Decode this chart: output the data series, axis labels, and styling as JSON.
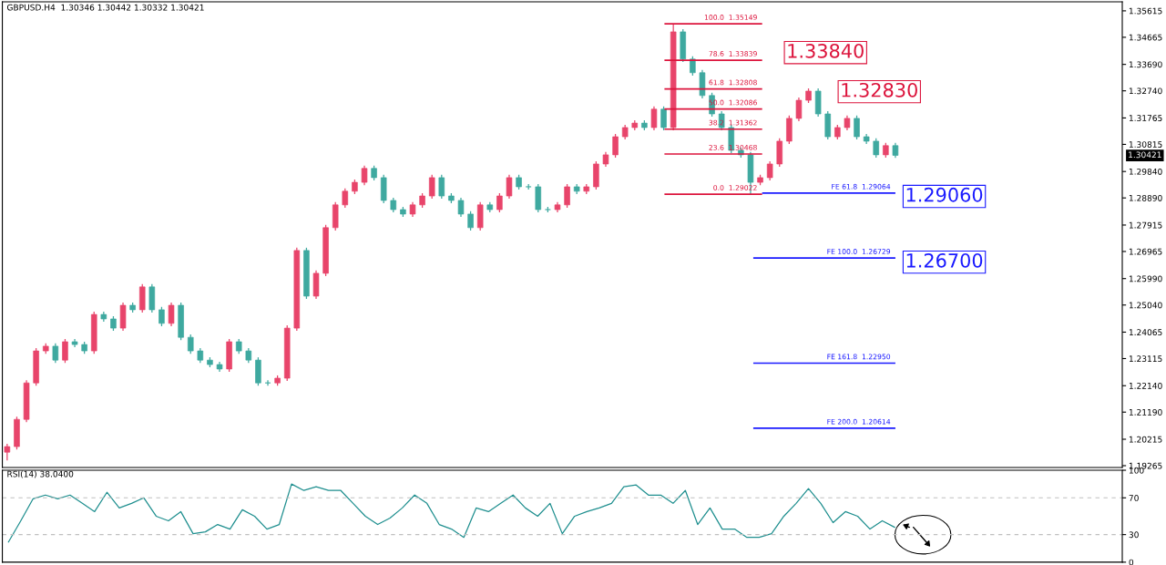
{
  "chart_data": [
    {
      "type": "candlestick",
      "title": "GBPUSD.H4  1.30346 1.30442 1.30332 1.30421",
      "categories": [
        null,
        null,
        null,
        null,
        null,
        null,
        null,
        null,
        null,
        null,
        null,
        null,
        null,
        null,
        null,
        null,
        null,
        null,
        null,
        null,
        null,
        null,
        null,
        null,
        null,
        null,
        null,
        null,
        null,
        null,
        null,
        null,
        null,
        null,
        null,
        null,
        null,
        null,
        null,
        null,
        null,
        null,
        null,
        null,
        null,
        null,
        null,
        null,
        null,
        null,
        null,
        null,
        null,
        null,
        null,
        null,
        null,
        null,
        null,
        null,
        null,
        null,
        null,
        null,
        null,
        null,
        null,
        null,
        null,
        null,
        null,
        null,
        null,
        null,
        null,
        null,
        null,
        null,
        null,
        null,
        null,
        null,
        null,
        null,
        null,
        null,
        null,
        null,
        null,
        null,
        null,
        null,
        null,
        null,
        null,
        null,
        null,
        null,
        null,
        null,
        null,
        null,
        null,
        null,
        null,
        null,
        null,
        null,
        null,
        null,
        null,
        null,
        null,
        null,
        null,
        null
      ],
      "ohlc": [
        [
          1.1975,
          1.2005,
          1.1945,
          1.1995
        ],
        [
          1.1995,
          1.2103,
          1.1985,
          1.2093
        ],
        [
          1.2093,
          1.2234,
          1.2083,
          1.2224
        ],
        [
          1.2224,
          1.2349,
          1.2214,
          1.2339
        ],
        [
          1.2339,
          1.2366,
          1.2329,
          1.2356
        ],
        [
          1.2356,
          1.2366,
          1.2296,
          1.2306
        ],
        [
          1.2306,
          1.2382,
          1.2296,
          1.2372
        ],
        [
          1.2372,
          1.2382,
          1.2352,
          1.2362
        ],
        [
          1.2362,
          1.2372,
          1.2329,
          1.2339
        ],
        [
          1.2339,
          1.248,
          1.2329,
          1.247
        ],
        [
          1.247,
          1.248,
          1.2444,
          1.2454
        ],
        [
          1.2454,
          1.2464,
          1.2411,
          1.2421
        ],
        [
          1.2421,
          1.2513,
          1.2411,
          1.2503
        ],
        [
          1.2503,
          1.2513,
          1.2477,
          1.2487
        ],
        [
          1.2487,
          1.2579,
          1.2477,
          1.2569
        ],
        [
          1.2569,
          1.2579,
          1.2477,
          1.2487
        ],
        [
          1.2487,
          1.2497,
          1.2428,
          1.2438
        ],
        [
          1.2438,
          1.2513,
          1.2428,
          1.2503
        ],
        [
          1.2503,
          1.2513,
          1.2378,
          1.2388
        ],
        [
          1.2388,
          1.2398,
          1.2329,
          1.2339
        ],
        [
          1.2339,
          1.2349,
          1.2296,
          1.2306
        ],
        [
          1.2306,
          1.2316,
          1.228,
          1.229
        ],
        [
          1.229,
          1.23,
          1.2264,
          1.2274
        ],
        [
          1.2274,
          1.2382,
          1.2264,
          1.2372
        ],
        [
          1.2372,
          1.2382,
          1.2329,
          1.2339
        ],
        [
          1.2339,
          1.2349,
          1.2296,
          1.2306
        ],
        [
          1.2306,
          1.2316,
          1.2214,
          1.2224
        ],
        [
          1.2224,
          1.2234,
          1.2214,
          1.2224
        ],
        [
          1.2224,
          1.2251,
          1.2214,
          1.2241
        ],
        [
          1.2241,
          1.2431,
          1.2231,
          1.2421
        ],
        [
          1.2421,
          1.271,
          1.2411,
          1.27
        ],
        [
          1.27,
          1.271,
          1.2526,
          1.2536
        ],
        [
          1.2536,
          1.2628,
          1.2526,
          1.2618
        ],
        [
          1.2618,
          1.2792,
          1.2608,
          1.2782
        ],
        [
          1.2782,
          1.2874,
          1.2772,
          1.2864
        ],
        [
          1.2864,
          1.2923,
          1.2854,
          1.2913
        ],
        [
          1.2913,
          1.2955,
          1.2903,
          1.2945
        ],
        [
          1.2945,
          1.3005,
          1.2935,
          1.2995
        ],
        [
          1.2995,
          1.3005,
          1.2952,
          1.2962
        ],
        [
          1.2962,
          1.2972,
          1.287,
          1.288
        ],
        [
          1.288,
          1.289,
          1.2837,
          1.2847
        ],
        [
          1.2847,
          1.2857,
          1.2821,
          1.2831
        ],
        [
          1.2831,
          1.2874,
          1.2821,
          1.2864
        ],
        [
          1.2864,
          1.2906,
          1.2854,
          1.2896
        ],
        [
          1.2896,
          1.2972,
          1.2886,
          1.2962
        ],
        [
          1.2962,
          1.2972,
          1.2886,
          1.2896
        ],
        [
          1.2896,
          1.2906,
          1.287,
          1.288
        ],
        [
          1.288,
          1.289,
          1.2821,
          1.2831
        ],
        [
          1.2831,
          1.2841,
          1.2772,
          1.2782
        ],
        [
          1.2782,
          1.2874,
          1.2772,
          1.2864
        ],
        [
          1.2864,
          1.2874,
          1.2837,
          1.2847
        ],
        [
          1.2847,
          1.2906,
          1.2837,
          1.2896
        ],
        [
          1.2896,
          1.2972,
          1.2886,
          1.2962
        ],
        [
          1.2962,
          1.2972,
          1.2919,
          1.2929
        ],
        [
          1.2929,
          1.2939,
          1.2919,
          1.2929
        ],
        [
          1.2929,
          1.2939,
          1.2837,
          1.2847
        ],
        [
          1.2847,
          1.2857,
          1.2837,
          1.2847
        ],
        [
          1.2847,
          1.2874,
          1.2837,
          1.2864
        ],
        [
          1.2864,
          1.2939,
          1.2854,
          1.2929
        ],
        [
          1.2929,
          1.2939,
          1.2903,
          1.2913
        ],
        [
          1.2913,
          1.2939,
          1.2903,
          1.2929
        ],
        [
          1.2929,
          1.3021,
          1.2919,
          1.3011
        ],
        [
          1.3011,
          1.3054,
          1.3001,
          1.3044
        ],
        [
          1.3044,
          1.3119,
          1.3034,
          1.3109
        ],
        [
          1.3109,
          1.3152,
          1.3099,
          1.3142
        ],
        [
          1.3142,
          1.3168,
          1.3132,
          1.3158
        ],
        [
          1.3158,
          1.3168,
          1.3132,
          1.3142
        ],
        [
          1.3142,
          1.3218,
          1.3132,
          1.3208
        ],
        [
          1.3208,
          1.3218,
          1.3132,
          1.3142
        ],
        [
          1.3142,
          1.3515,
          1.3132,
          1.3486
        ],
        [
          1.3486,
          1.3496,
          1.3378,
          1.3388
        ],
        [
          1.3388,
          1.3398,
          1.3329,
          1.3339
        ],
        [
          1.3339,
          1.3349,
          1.3247,
          1.3257
        ],
        [
          1.3257,
          1.3267,
          1.3181,
          1.3191
        ],
        [
          1.3191,
          1.3201,
          1.3132,
          1.3142
        ],
        [
          1.3142,
          1.3152,
          1.305,
          1.306
        ],
        [
          1.306,
          1.307,
          1.3034,
          1.3044
        ],
        [
          1.3044,
          1.3054,
          1.2902,
          1.2945
        ],
        [
          1.2945,
          1.2972,
          1.2935,
          1.2962
        ],
        [
          1.2962,
          1.3021,
          1.2952,
          1.3011
        ],
        [
          1.3011,
          1.3103,
          1.3001,
          1.3093
        ],
        [
          1.3093,
          1.3185,
          1.3083,
          1.3175
        ],
        [
          1.3175,
          1.325,
          1.3165,
          1.324
        ],
        [
          1.324,
          1.3283,
          1.323,
          1.3273
        ],
        [
          1.3273,
          1.3283,
          1.3181,
          1.3191
        ],
        [
          1.3191,
          1.3201,
          1.3099,
          1.3109
        ],
        [
          1.3109,
          1.3152,
          1.3099,
          1.3142
        ],
        [
          1.3142,
          1.3185,
          1.3132,
          1.3175
        ],
        [
          1.3175,
          1.3185,
          1.3099,
          1.3109
        ],
        [
          1.3109,
          1.3119,
          1.3083,
          1.3093
        ],
        [
          1.3093,
          1.3103,
          1.3034,
          1.3044
        ],
        [
          1.3044,
          1.3087,
          1.3034,
          1.3077
        ],
        [
          1.3077,
          1.3087,
          1.3033,
          1.3042
        ],
        null,
        null,
        null,
        null,
        null,
        null,
        null,
        null,
        null,
        null,
        null,
        null,
        null,
        null,
        null,
        null,
        null,
        null,
        null,
        null,
        null,
        null,
        null
      ],
      "colors": [
        "#e8456b",
        "#e8456b",
        "#e8456b",
        "#e8456b",
        "#e8456b",
        "#3fa9a0",
        "#e8456b",
        "#3fa9a0",
        "#3fa9a0",
        "#e8456b",
        "#3fa9a0",
        "#3fa9a0",
        "#e8456b",
        "#3fa9a0",
        "#e8456b",
        "#3fa9a0",
        "#3fa9a0",
        "#e8456b",
        "#3fa9a0",
        "#3fa9a0",
        "#3fa9a0",
        "#3fa9a0",
        "#3fa9a0",
        "#e8456b",
        "#3fa9a0",
        "#3fa9a0",
        "#3fa9a0",
        "#3fa9a0",
        "#e8456b",
        "#e8456b",
        "#e8456b",
        "#3fa9a0",
        "#e8456b",
        "#e8456b",
        "#e8456b",
        "#e8456b",
        "#e8456b",
        "#e8456b",
        "#3fa9a0",
        "#3fa9a0",
        "#3fa9a0",
        "#3fa9a0",
        "#e8456b",
        "#e8456b",
        "#e8456b",
        "#3fa9a0",
        "#3fa9a0",
        "#3fa9a0",
        "#3fa9a0",
        "#e8456b",
        "#3fa9a0",
        "#e8456b",
        "#e8456b",
        "#3fa9a0",
        "#3fa9a0",
        "#3fa9a0",
        "#3fa9a0",
        "#e8456b",
        "#e8456b",
        "#3fa9a0",
        "#e8456b",
        "#e8456b",
        "#e8456b",
        "#e8456b",
        "#e8456b",
        "#e8456b",
        "#3fa9a0",
        "#e8456b",
        "#3fa9a0",
        "#e8456b",
        "#3fa9a0",
        "#3fa9a0",
        "#3fa9a0",
        "#3fa9a0",
        "#3fa9a0",
        "#3fa9a0",
        "#3fa9a0",
        "#3fa9a0",
        "#e8456b",
        "#e8456b",
        "#e8456b",
        "#e8456b",
        "#e8456b",
        "#e8456b",
        "#3fa9a0",
        "#3fa9a0",
        "#e8456b",
        "#e8456b",
        "#3fa9a0",
        "#3fa9a0",
        "#3fa9a0",
        "#e8456b",
        "#3fa9a0",
        null,
        null,
        null,
        null,
        null,
        null,
        null,
        null,
        null,
        null,
        null,
        null,
        null,
        null,
        null,
        null,
        null,
        null,
        null,
        null,
        null,
        null,
        null
      ],
      "ylim": [
        1.192,
        1.3594
      ],
      "yticks": [
        1.35615,
        1.34665,
        {
          "value": 1.3369,
          "label": "1.33690"
        },
        {
          "value": 1.3274,
          "label": "1.32740"
        },
        1.31765,
        1.30815,
        {
          "value": 1.2984,
          "label": "1.29840"
        },
        {
          "value": 1.2889,
          "label": "1.28890"
        },
        1.27915,
        1.26965,
        {
          "value": 1.2599,
          "label": "1.25990"
        },
        {
          "value": 1.2504,
          "label": "1.25040"
        },
        1.24065,
        1.23115,
        {
          "value": 1.2214,
          "label": "1.22140"
        },
        {
          "value": 1.2119,
          "label": "1.21190"
        },
        1.20215,
        1.19265
      ],
      "ref_lines": [
        {
          "axis": "y",
          "value": 1.35149,
          "label": "100.0  1.35149",
          "color": "#dc143c"
        },
        {
          "axis": "y",
          "value": 1.33839,
          "label": "78.6  1.33839",
          "color": "#dc143c"
        },
        {
          "axis": "y",
          "value": 1.32808,
          "label": "61.8  1.32808",
          "color": "#dc143c"
        },
        {
          "axis": "y",
          "value": 1.32086,
          "label": "50.0  1.32086",
          "color": "#dc143c"
        },
        {
          "axis": "y",
          "value": 1.31362,
          "label": "38.2  1.31362",
          "color": "#dc143c"
        },
        {
          "axis": "y",
          "value": 1.30468,
          "label": "23.6  1.30468",
          "color": "#dc143c"
        },
        {
          "axis": "y",
          "value": 1.29022,
          "label": "0.0  1.29022",
          "color": "#dc143c"
        },
        {
          "axis": "y",
          "value": 1.29064,
          "label": "FE 61.8  1.29064",
          "color": "#1a1aff"
        },
        {
          "axis": "y",
          "value": 1.26729,
          "label": "FE 100.0  1.26729",
          "color": "#1a1aff"
        },
        {
          "axis": "y",
          "value": 1.2295,
          "label": "FE 161.8  1.22950",
          "color": "#1a1aff"
        },
        {
          "axis": "y",
          "value": 1.20614,
          "label": "FE 200.0  1.20614",
          "color": "#1a1aff"
        }
      ],
      "annotations": [
        "1.33840",
        "1.32830",
        "1.29060",
        "1.26700",
        "1.30421"
      ],
      "grid": false
    },
    {
      "type": "line",
      "title": "RSI(14) 38.0400",
      "categories": [
        null,
        null,
        null,
        null,
        null,
        null,
        null,
        null,
        null,
        null,
        null,
        null,
        null,
        null,
        null,
        null,
        null,
        null,
        null,
        null,
        null,
        null,
        null,
        null,
        null,
        null,
        null,
        null,
        null,
        null,
        null,
        null,
        null,
        null,
        null,
        null,
        null,
        null,
        null,
        null,
        null,
        null,
        null,
        null,
        null,
        null,
        null,
        null,
        null,
        null,
        null,
        null,
        null,
        null,
        null,
        null,
        null,
        null,
        null,
        null,
        null,
        null,
        null,
        null,
        null,
        null,
        null,
        null,
        null,
        null,
        null,
        null,
        null,
        null,
        null,
        null,
        null,
        null,
        null,
        null,
        null,
        null,
        null,
        null,
        null,
        null,
        null,
        null,
        null,
        null,
        null
      ],
      "series": [
        {
          "color": "#1f8f8f",
          "values": [
            22,
            45,
            69,
            73,
            69,
            73,
            64,
            55,
            76,
            59,
            64,
            70,
            50,
            45,
            55,
            31,
            33,
            41,
            36,
            57,
            50,
            36,
            41,
            85,
            78,
            82,
            78,
            78,
            64,
            50,
            41,
            48,
            59,
            73,
            64,
            41,
            36,
            27,
            59,
            55,
            64,
            73,
            59,
            50,
            64,
            31,
            50,
            55,
            59,
            64,
            82,
            84,
            73,
            73,
            64,
            78,
            41,
            59,
            36,
            36,
            27,
            27,
            31,
            50,
            64,
            80,
            64,
            43,
            55,
            50,
            36,
            45,
            38,
            null,
            null,
            null,
            null,
            null,
            null,
            null,
            null,
            null,
            null,
            null,
            null,
            null,
            null,
            null,
            null,
            null,
            null
          ]
        }
      ],
      "ylim": [
        0,
        100
      ],
      "yticks": [
        0,
        30,
        70,
        100
      ],
      "ref_lines": [
        {
          "axis": "y",
          "value": 30,
          "color": "#c0c0c0",
          "line_style": "dashed"
        },
        {
          "axis": "y",
          "value": 70,
          "color": "#c0c0c0",
          "line_style": "dashed"
        }
      ],
      "grid": false
    }
  ]
}
